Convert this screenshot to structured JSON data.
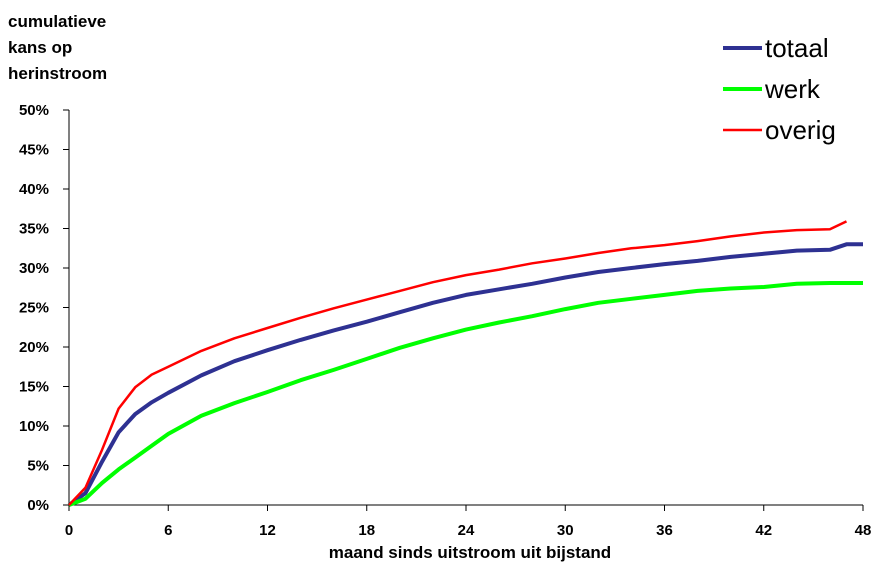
{
  "chart_data": {
    "type": "line",
    "ylabel": [
      "cumulatieve",
      "kans op",
      "herinstroom"
    ],
    "xlabel": "maand sinds uitstroom uit bijstand",
    "xlim": [
      0,
      48
    ],
    "ylim": [
      0,
      50
    ],
    "xticks": [
      0,
      6,
      12,
      18,
      24,
      30,
      36,
      42,
      48
    ],
    "yticks": [
      0,
      5,
      10,
      15,
      20,
      25,
      30,
      35,
      40,
      45,
      50
    ],
    "ytick_labels": [
      "0%",
      "5%",
      "10%",
      "15%",
      "20%",
      "25%",
      "30%",
      "35%",
      "40%",
      "45%",
      "50%"
    ],
    "grid": false,
    "legend_position": "top-right",
    "series": [
      {
        "name": "totaal",
        "color": "#2e3192",
        "x": [
          0,
          1,
          2,
          3,
          4,
          5,
          6,
          8,
          10,
          12,
          14,
          16,
          18,
          20,
          22,
          24,
          26,
          28,
          30,
          32,
          34,
          36,
          38,
          40,
          42,
          44,
          46,
          47,
          48
        ],
        "values": [
          0,
          1.5,
          5.5,
          9.2,
          11.5,
          13.0,
          14.2,
          16.4,
          18.2,
          19.6,
          20.9,
          22.1,
          23.2,
          24.4,
          25.6,
          26.6,
          27.3,
          28.0,
          28.8,
          29.5,
          30.0,
          30.5,
          30.9,
          31.4,
          31.8,
          32.2,
          32.3,
          33.0,
          33.0
        ]
      },
      {
        "name": "werk",
        "color": "#00ff00",
        "x": [
          0,
          1,
          2,
          3,
          4,
          5,
          6,
          8,
          10,
          12,
          14,
          16,
          18,
          20,
          22,
          24,
          26,
          28,
          30,
          32,
          34,
          36,
          38,
          40,
          42,
          44,
          46,
          48
        ],
        "values": [
          0,
          0.8,
          2.8,
          4.5,
          6.0,
          7.5,
          9.0,
          11.3,
          12.9,
          14.3,
          15.8,
          17.1,
          18.5,
          19.9,
          21.1,
          22.2,
          23.1,
          23.9,
          24.8,
          25.6,
          26.1,
          26.6,
          27.1,
          27.4,
          27.6,
          28.0,
          28.1,
          28.1
        ]
      },
      {
        "name": "overig",
        "color": "#ff0000",
        "x": [
          0,
          1,
          2,
          3,
          4,
          5,
          6,
          8,
          10,
          12,
          14,
          16,
          18,
          20,
          22,
          24,
          26,
          28,
          30,
          32,
          34,
          36,
          38,
          40,
          42,
          44,
          46,
          47
        ],
        "values": [
          0,
          2.2,
          7.0,
          12.2,
          14.9,
          16.5,
          17.5,
          19.5,
          21.1,
          22.4,
          23.7,
          24.9,
          26.0,
          27.1,
          28.2,
          29.1,
          29.8,
          30.6,
          31.2,
          31.9,
          32.5,
          32.9,
          33.4,
          34.0,
          34.5,
          34.8,
          34.9,
          35.9
        ]
      }
    ]
  }
}
